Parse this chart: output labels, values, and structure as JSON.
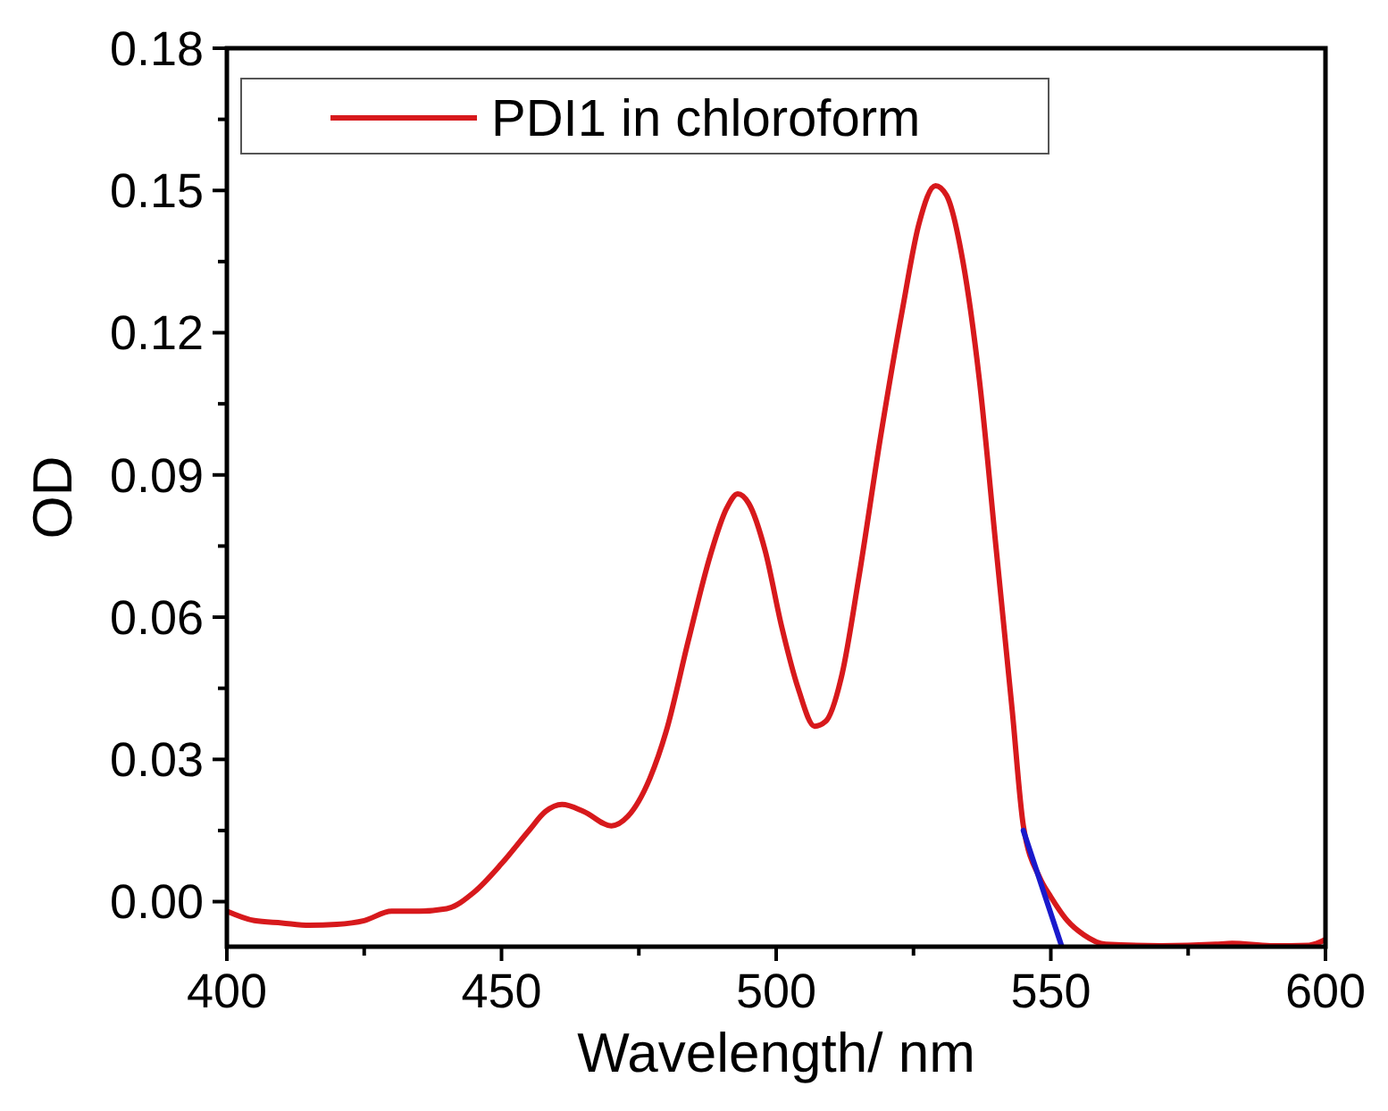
{
  "chart_data": {
    "type": "line",
    "xlabel": "Wavelength/ nm",
    "ylabel": "OD",
    "xlim": [
      400,
      600
    ],
    "xticks": [
      400,
      450,
      500,
      550,
      600
    ],
    "ylim": [
      -0.0095,
      0.18
    ],
    "yticks": [
      {
        "value": 0,
        "label": "0.00"
      },
      {
        "value": 0.03,
        "label": "0.03"
      },
      {
        "value": 0.06,
        "label": "0.06"
      },
      {
        "value": 0.09,
        "label": "0.09"
      },
      {
        "value": 0.12,
        "label": "0.12"
      },
      {
        "value": 0.15,
        "label": "0.15"
      },
      {
        "value": 0.18,
        "label": "0.18"
      }
    ],
    "grid": false,
    "legend": "top left",
    "series": [
      {
        "name": "PDI1 in chloroform",
        "color": "#d7191c",
        "x": [
          400,
          405,
          410,
          415,
          420,
          425,
          430,
          435,
          440,
          445,
          450,
          455,
          458,
          461,
          465,
          470,
          473,
          477,
          480,
          484,
          488,
          491,
          493,
          495,
          498,
          501,
          504,
          507,
          509,
          512,
          515,
          519,
          523,
          526,
          529,
          531,
          534,
          537,
          540,
          543,
          545,
          548,
          550,
          553,
          556,
          560,
          570,
          580,
          583,
          590,
          597,
          600
        ],
        "values": [
          -0.002,
          -0.004,
          -0.0045,
          -0.005,
          -0.0048,
          -0.004,
          -0.002,
          -0.002,
          -0.0015,
          0.002,
          0.008,
          0.015,
          0.019,
          0.0205,
          0.019,
          0.016,
          0.018,
          0.026,
          0.036,
          0.055,
          0.073,
          0.083,
          0.086,
          0.084,
          0.074,
          0.058,
          0.045,
          0.037,
          0.038,
          0.048,
          0.068,
          0.098,
          0.125,
          0.143,
          0.151,
          0.149,
          0.135,
          0.11,
          0.075,
          0.04,
          0.016,
          0.005,
          0.001,
          -0.004,
          -0.007,
          -0.009,
          -0.0093,
          -0.009,
          -0.0088,
          -0.0093,
          -0.0092,
          -0.008
        ]
      },
      {
        "type": "line",
        "color": "#1a1acc",
        "x": [
          545,
          552
        ],
        "values": [
          0.015,
          -0.0095
        ]
      }
    ]
  }
}
